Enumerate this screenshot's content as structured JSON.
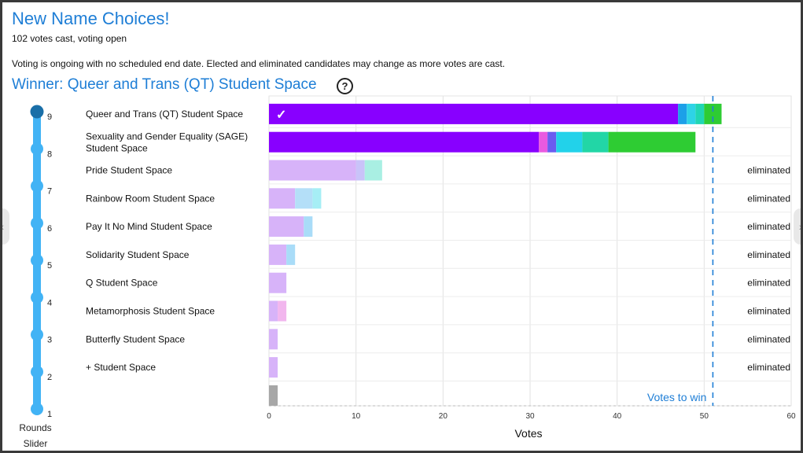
{
  "header": {
    "title": "New Name Choices!",
    "subtitle": "102 votes cast, voting open",
    "notice": "Voting is ongoing with no scheduled end date. Elected and eliminated candidates may change as more votes are cast.",
    "winner": "Winner: Queer and Trans (QT) Student Space",
    "help_icon": "?"
  },
  "rounds_slider": {
    "label_line1": "Rounds",
    "label_line2": "Slider",
    "rounds": [
      1,
      2,
      3,
      4,
      5,
      6,
      7,
      8,
      9
    ],
    "current_round": 9,
    "color": "#42b3f5",
    "active_color": "#1a6fa8"
  },
  "nav": {
    "left": "‹",
    "right": "›"
  },
  "chart_data": {
    "type": "bar",
    "orientation": "horizontal",
    "stacked": true,
    "xlabel": "Votes",
    "xlim": [
      0,
      60
    ],
    "xticks": [
      0,
      10,
      20,
      30,
      40,
      50,
      60
    ],
    "threshold": {
      "value": 51,
      "label": "Votes to win"
    },
    "check_mark": "✓",
    "candidates": [
      {
        "name": [
          "Queer and Trans (QT) Student Space"
        ],
        "status": "",
        "winner": true,
        "segments": [
          {
            "value": 47,
            "color": "#8800ff"
          },
          {
            "value": 1,
            "color": "#1ca0e8"
          },
          {
            "value": 1,
            "color": "#2ed3e6"
          },
          {
            "value": 1,
            "color": "#20d6b4"
          },
          {
            "value": 2,
            "color": "#2ecc33"
          }
        ]
      },
      {
        "name": [
          "Sexuality and Gender Equality (SAGE)",
          "Student Space"
        ],
        "status": "",
        "winner": false,
        "segments": [
          {
            "value": 31,
            "color": "#8800ff"
          },
          {
            "value": 1,
            "color": "#e95ae0"
          },
          {
            "value": 1,
            "color": "#6a5cf0"
          },
          {
            "value": 3,
            "color": "#22d2ea"
          },
          {
            "value": 3,
            "color": "#22d6a6"
          },
          {
            "value": 10,
            "color": "#2ecc33"
          }
        ]
      },
      {
        "name": [
          "Pride Student Space"
        ],
        "status": "eliminated",
        "winner": false,
        "segments": [
          {
            "value": 10,
            "color": "#d7b3f9"
          },
          {
            "value": 1,
            "color": "#c9c3f9"
          },
          {
            "value": 2,
            "color": "#a9efe3"
          }
        ]
      },
      {
        "name": [
          "Rainbow Room Student Space"
        ],
        "status": "eliminated",
        "winner": false,
        "segments": [
          {
            "value": 3,
            "color": "#d7b3f9"
          },
          {
            "value": 2,
            "color": "#b4dff8"
          },
          {
            "value": 1,
            "color": "#a6eef5"
          }
        ]
      },
      {
        "name": [
          "Pay It No Mind Student Space"
        ],
        "status": "eliminated",
        "winner": false,
        "segments": [
          {
            "value": 4,
            "color": "#d7b3f9"
          },
          {
            "value": 1,
            "color": "#a9dcf8"
          }
        ]
      },
      {
        "name": [
          "Solidarity Student Space"
        ],
        "status": "eliminated",
        "winner": false,
        "segments": [
          {
            "value": 2,
            "color": "#d7b3f9"
          },
          {
            "value": 1,
            "color": "#a9dcf8"
          }
        ]
      },
      {
        "name": [
          "Q Student Space"
        ],
        "status": "eliminated",
        "winner": false,
        "segments": [
          {
            "value": 2,
            "color": "#d7b3f9"
          }
        ]
      },
      {
        "name": [
          "Metamorphosis Student Space"
        ],
        "status": "eliminated",
        "winner": false,
        "segments": [
          {
            "value": 1,
            "color": "#d7b3f9"
          },
          {
            "value": 1,
            "color": "#f2b6ee"
          }
        ]
      },
      {
        "name": [
          "Butterfly Student Space"
        ],
        "status": "eliminated",
        "winner": false,
        "segments": [
          {
            "value": 1,
            "color": "#d7b3f9"
          }
        ]
      },
      {
        "name": [
          "+ Student Space"
        ],
        "status": "eliminated",
        "winner": false,
        "segments": [
          {
            "value": 1,
            "color": "#d7b3f9"
          }
        ]
      },
      {
        "name": [
          ""
        ],
        "status": "",
        "winner": false,
        "segments": [
          {
            "value": 1,
            "color": "#a7a7a7"
          }
        ]
      }
    ]
  }
}
